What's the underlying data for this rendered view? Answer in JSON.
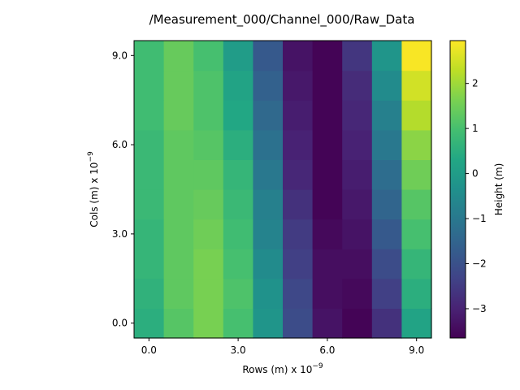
{
  "chart_data": {
    "type": "heatmap",
    "title": "/Measurement_000/Channel_000/Raw_Data",
    "xlabel": "Rows (m) x 10",
    "xlabel_exp": "−9",
    "ylabel": "Cols (m) x 10",
    "ylabel_exp": "−9",
    "colorbar_label": "Height (m)",
    "colormap": "viridis",
    "x": [
      0,
      1,
      2,
      3,
      4,
      5,
      6,
      7,
      8,
      9
    ],
    "y": [
      0,
      1,
      2,
      3,
      4,
      5,
      6,
      7,
      8,
      9
    ],
    "xlim": [
      -0.5,
      9.5
    ],
    "ylim": [
      -0.5,
      9.5
    ],
    "x_ticks": [
      0,
      3,
      6,
      9
    ],
    "x_tick_labels": [
      "0.0",
      "3.0",
      "6.0",
      "9.0"
    ],
    "y_ticks": [
      0,
      3,
      6,
      9
    ],
    "y_tick_labels": [
      "0.0",
      "3.0",
      "6.0",
      "9.0"
    ],
    "clim": [
      -3.65,
      2.95
    ],
    "colorbar_ticks": [
      -3,
      -2,
      -1,
      0,
      1,
      2
    ],
    "colorbar_tick_labels": [
      "−3",
      "−2",
      "−1",
      "0",
      "1",
      "2"
    ],
    "values": [
      [
        0.5,
        1.2,
        1.6,
        1.0,
        -0.2,
        -2.1,
        -3.3,
        -3.6,
        -2.7,
        0.2
      ],
      [
        0.6,
        1.3,
        1.6,
        1.1,
        -0.3,
        -2.2,
        -3.4,
        -3.5,
        -2.4,
        0.5
      ],
      [
        0.7,
        1.3,
        1.6,
        1.0,
        -0.5,
        -2.4,
        -3.4,
        -3.4,
        -2.1,
        0.7
      ],
      [
        0.7,
        1.3,
        1.5,
        0.9,
        -0.7,
        -2.5,
        -3.5,
        -3.3,
        -1.8,
        1.0
      ],
      [
        0.8,
        1.3,
        1.4,
        0.8,
        -0.8,
        -2.7,
        -3.6,
        -3.2,
        -1.5,
        1.2
      ],
      [
        0.8,
        1.3,
        1.3,
        0.7,
        -1.0,
        -2.9,
        -3.6,
        -3.1,
        -1.3,
        1.5
      ],
      [
        0.8,
        1.3,
        1.2,
        0.5,
        -1.2,
        -3.0,
        -3.6,
        -3.0,
        -1.0,
        1.8
      ],
      [
        0.9,
        1.4,
        1.1,
        0.3,
        -1.4,
        -3.1,
        -3.6,
        -2.9,
        -0.8,
        2.2
      ],
      [
        0.9,
        1.4,
        1.1,
        0.2,
        -1.6,
        -3.2,
        -3.6,
        -2.8,
        -0.5,
        2.5
      ],
      [
        0.9,
        1.4,
        1.0,
        0.0,
        -1.8,
        -3.3,
        -3.6,
        -2.6,
        -0.2,
        2.9
      ]
    ]
  }
}
